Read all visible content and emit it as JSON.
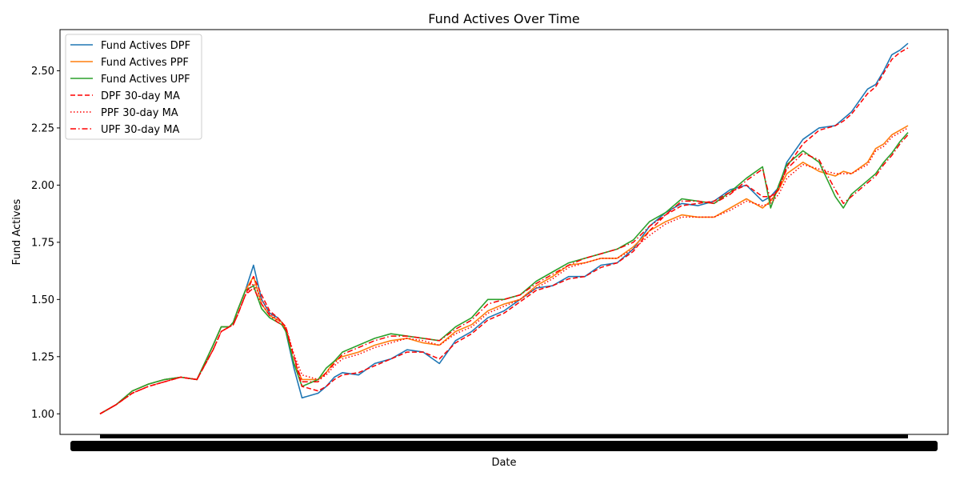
{
  "chart_data": {
    "type": "line",
    "title": "Fund Actives Over Time",
    "xlabel": "Date",
    "ylabel": "Fund Actives",
    "ylim": [
      0.91,
      2.68
    ],
    "yticks": [
      1.0,
      1.25,
      1.5,
      1.75,
      2.0,
      2.25,
      2.5
    ],
    "ytick_labels": [
      "1.00",
      "1.25",
      "1.50",
      "1.75",
      "2.00",
      "2.25",
      "2.50"
    ],
    "x_tick_labels_overlapping": true,
    "x_range": [
      0,
      100
    ],
    "grid": false,
    "legend_position": "upper left",
    "series": [
      {
        "name": "Fund Actives DPF",
        "color": "#1f77b4",
        "style": "solid",
        "x": [
          0,
          2,
          4,
          6,
          8,
          10,
          12,
          14,
          15,
          16,
          16.5,
          17,
          18,
          19,
          20,
          21,
          22,
          22.5,
          23,
          24,
          25,
          27,
          28,
          29,
          30,
          32,
          34,
          36,
          38,
          40,
          42,
          44,
          46,
          48,
          50,
          52,
          54,
          56,
          58,
          60,
          62,
          64,
          66,
          68,
          70,
          72,
          74,
          76,
          78,
          80,
          82,
          83,
          84,
          85,
          87,
          89,
          91,
          92,
          93,
          95,
          96,
          97,
          98,
          99,
          100
        ],
        "values": [
          1.0,
          1.04,
          1.1,
          1.13,
          1.15,
          1.16,
          1.15,
          1.3,
          1.38,
          1.38,
          1.4,
          1.45,
          1.54,
          1.65,
          1.5,
          1.44,
          1.42,
          1.4,
          1.36,
          1.2,
          1.07,
          1.09,
          1.12,
          1.16,
          1.18,
          1.17,
          1.22,
          1.24,
          1.28,
          1.27,
          1.22,
          1.32,
          1.36,
          1.42,
          1.45,
          1.5,
          1.55,
          1.56,
          1.6,
          1.6,
          1.65,
          1.66,
          1.72,
          1.82,
          1.88,
          1.92,
          1.91,
          1.93,
          1.98,
          2.0,
          1.93,
          1.95,
          1.99,
          2.1,
          2.2,
          2.25,
          2.26,
          2.29,
          2.32,
          2.42,
          2.44,
          2.5,
          2.57,
          2.59,
          2.62
        ]
      },
      {
        "name": "Fund Actives PPF",
        "color": "#ff7f0e",
        "style": "solid",
        "x": [
          0,
          2,
          4,
          6,
          8,
          10,
          12,
          14,
          15,
          16,
          16.5,
          17,
          18,
          19,
          20,
          21,
          22,
          22.5,
          23,
          24,
          25,
          27,
          28,
          29,
          30,
          32,
          34,
          36,
          38,
          40,
          42,
          44,
          46,
          48,
          50,
          52,
          54,
          56,
          58,
          60,
          62,
          64,
          66,
          68,
          70,
          72,
          74,
          76,
          78,
          80,
          82,
          83,
          84,
          85,
          87,
          89,
          91,
          92,
          93,
          95,
          96,
          97,
          98,
          99,
          100
        ],
        "values": [
          1.0,
          1.04,
          1.1,
          1.13,
          1.15,
          1.16,
          1.15,
          1.3,
          1.38,
          1.38,
          1.4,
          1.45,
          1.54,
          1.6,
          1.48,
          1.43,
          1.41,
          1.4,
          1.37,
          1.22,
          1.15,
          1.15,
          1.18,
          1.23,
          1.25,
          1.27,
          1.3,
          1.32,
          1.33,
          1.31,
          1.3,
          1.36,
          1.39,
          1.45,
          1.48,
          1.5,
          1.56,
          1.6,
          1.65,
          1.66,
          1.68,
          1.68,
          1.73,
          1.8,
          1.84,
          1.87,
          1.86,
          1.86,
          1.9,
          1.94,
          1.9,
          1.93,
          1.98,
          2.05,
          2.1,
          2.06,
          2.04,
          2.06,
          2.05,
          2.1,
          2.16,
          2.18,
          2.22,
          2.24,
          2.26
        ]
      },
      {
        "name": "Fund Actives UPF",
        "color": "#2ca02c",
        "style": "solid",
        "x": [
          0,
          2,
          4,
          6,
          8,
          10,
          12,
          14,
          15,
          16,
          16.5,
          17,
          18,
          19,
          20,
          21,
          22,
          22.5,
          23,
          24,
          25,
          27,
          28,
          29,
          30,
          32,
          34,
          36,
          38,
          40,
          42,
          44,
          46,
          48,
          50,
          52,
          54,
          56,
          58,
          60,
          62,
          64,
          66,
          68,
          70,
          72,
          74,
          76,
          78,
          80,
          82,
          83,
          84,
          85,
          87,
          89,
          91,
          92,
          93,
          95,
          96,
          97,
          98,
          99,
          100
        ],
        "values": [
          1.0,
          1.04,
          1.1,
          1.13,
          1.15,
          1.16,
          1.15,
          1.3,
          1.38,
          1.38,
          1.4,
          1.45,
          1.54,
          1.56,
          1.46,
          1.42,
          1.4,
          1.39,
          1.36,
          1.22,
          1.12,
          1.15,
          1.2,
          1.23,
          1.27,
          1.3,
          1.33,
          1.35,
          1.34,
          1.33,
          1.32,
          1.38,
          1.42,
          1.5,
          1.5,
          1.52,
          1.58,
          1.62,
          1.66,
          1.68,
          1.7,
          1.72,
          1.76,
          1.84,
          1.88,
          1.94,
          1.93,
          1.92,
          1.97,
          2.03,
          2.08,
          1.9,
          2.0,
          2.09,
          2.15,
          2.1,
          1.95,
          1.9,
          1.96,
          2.02,
          2.05,
          2.1,
          2.14,
          2.19,
          2.23
        ]
      },
      {
        "name": "DPF 30-day MA",
        "color": "#ff0000",
        "style": "dashed",
        "x": [
          0,
          2,
          4,
          6,
          8,
          10,
          12,
          14,
          15,
          16,
          16.5,
          17,
          18,
          19,
          20,
          21,
          22,
          22.5,
          23,
          24,
          25,
          27,
          28,
          29,
          30,
          32,
          34,
          36,
          38,
          40,
          42,
          44,
          46,
          48,
          50,
          52,
          54,
          56,
          58,
          60,
          62,
          64,
          66,
          68,
          70,
          72,
          74,
          76,
          78,
          80,
          82,
          83,
          84,
          85,
          87,
          89,
          91,
          92,
          93,
          95,
          96,
          97,
          98,
          99,
          100
        ],
        "values": [
          1.0,
          1.04,
          1.09,
          1.12,
          1.14,
          1.16,
          1.15,
          1.28,
          1.36,
          1.38,
          1.39,
          1.43,
          1.52,
          1.6,
          1.52,
          1.45,
          1.42,
          1.4,
          1.38,
          1.25,
          1.12,
          1.1,
          1.12,
          1.15,
          1.17,
          1.18,
          1.21,
          1.24,
          1.27,
          1.27,
          1.24,
          1.31,
          1.35,
          1.41,
          1.44,
          1.49,
          1.54,
          1.56,
          1.59,
          1.6,
          1.64,
          1.66,
          1.71,
          1.8,
          1.87,
          1.91,
          1.92,
          1.93,
          1.97,
          2.0,
          1.95,
          1.95,
          1.98,
          2.08,
          2.18,
          2.24,
          2.26,
          2.28,
          2.31,
          2.4,
          2.43,
          2.49,
          2.55,
          2.58,
          2.6
        ]
      },
      {
        "name": "PPF 30-day MA",
        "color": "#ff0000",
        "style": "dotted",
        "x": [
          0,
          2,
          4,
          6,
          8,
          10,
          12,
          14,
          15,
          16,
          16.5,
          17,
          18,
          19,
          20,
          21,
          22,
          22.5,
          23,
          24,
          25,
          27,
          28,
          29,
          30,
          32,
          34,
          36,
          38,
          40,
          42,
          44,
          46,
          48,
          50,
          52,
          54,
          56,
          58,
          60,
          62,
          64,
          66,
          68,
          70,
          72,
          74,
          76,
          78,
          80,
          82,
          83,
          84,
          85,
          87,
          89,
          91,
          92,
          93,
          95,
          96,
          97,
          98,
          99,
          100
        ],
        "values": [
          1.0,
          1.04,
          1.09,
          1.12,
          1.14,
          1.16,
          1.15,
          1.28,
          1.36,
          1.38,
          1.39,
          1.43,
          1.52,
          1.57,
          1.5,
          1.44,
          1.41,
          1.4,
          1.38,
          1.26,
          1.17,
          1.15,
          1.17,
          1.21,
          1.24,
          1.26,
          1.29,
          1.31,
          1.33,
          1.32,
          1.3,
          1.35,
          1.38,
          1.44,
          1.47,
          1.5,
          1.55,
          1.59,
          1.64,
          1.66,
          1.68,
          1.68,
          1.72,
          1.78,
          1.83,
          1.86,
          1.86,
          1.86,
          1.89,
          1.93,
          1.91,
          1.92,
          1.96,
          2.03,
          2.09,
          2.07,
          2.05,
          2.05,
          2.05,
          2.09,
          2.15,
          2.17,
          2.21,
          2.23,
          2.25
        ]
      },
      {
        "name": "UPF 30-day MA",
        "color": "#ff0000",
        "style": "dashdot",
        "x": [
          0,
          2,
          4,
          6,
          8,
          10,
          12,
          14,
          15,
          16,
          16.5,
          17,
          18,
          19,
          20,
          21,
          22,
          22.5,
          23,
          24,
          25,
          27,
          28,
          29,
          30,
          32,
          34,
          36,
          38,
          40,
          42,
          44,
          46,
          48,
          50,
          52,
          54,
          56,
          58,
          60,
          62,
          64,
          66,
          68,
          70,
          72,
          74,
          76,
          78,
          80,
          82,
          83,
          84,
          85,
          87,
          89,
          91,
          92,
          93,
          95,
          96,
          97,
          98,
          99,
          100
        ],
        "values": [
          1.0,
          1.04,
          1.09,
          1.12,
          1.14,
          1.16,
          1.15,
          1.28,
          1.36,
          1.38,
          1.39,
          1.43,
          1.52,
          1.55,
          1.48,
          1.43,
          1.4,
          1.39,
          1.37,
          1.25,
          1.14,
          1.14,
          1.18,
          1.22,
          1.26,
          1.29,
          1.32,
          1.34,
          1.34,
          1.33,
          1.32,
          1.37,
          1.41,
          1.48,
          1.5,
          1.52,
          1.57,
          1.61,
          1.65,
          1.68,
          1.7,
          1.72,
          1.75,
          1.82,
          1.87,
          1.93,
          1.93,
          1.92,
          1.96,
          2.02,
          2.07,
          1.93,
          1.99,
          2.07,
          2.14,
          2.11,
          1.98,
          1.92,
          1.95,
          2.01,
          2.04,
          2.09,
          2.13,
          2.18,
          2.22
        ]
      }
    ]
  }
}
